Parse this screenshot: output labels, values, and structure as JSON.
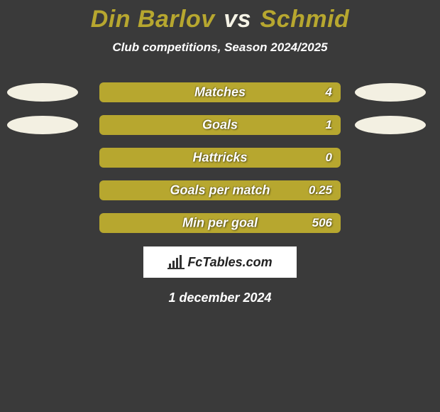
{
  "title": {
    "player1": "Din Barlov",
    "vs": "vs",
    "player2": "Schmid",
    "player1_color": "#b7a72f",
    "vs_color": "#f5f3e6",
    "player2_color": "#b7a72f",
    "fontsize": 34
  },
  "subtitle": {
    "text": "Club competitions, Season 2024/2025",
    "color": "#ffffff",
    "fontsize": 17
  },
  "ellipses": {
    "left_color": "#f3f0e2",
    "right_color": "#f3f0e2",
    "width": 100,
    "height": 26
  },
  "stats": {
    "bar_color": "#b7a72f",
    "label_fontsize": 18,
    "value_fontsize": 17,
    "rows": [
      {
        "label": "Matches",
        "value": "4",
        "show_ellipses": true
      },
      {
        "label": "Goals",
        "value": "1",
        "show_ellipses": true
      },
      {
        "label": "Hattricks",
        "value": "0",
        "show_ellipses": false
      },
      {
        "label": "Goals per match",
        "value": "0.25",
        "show_ellipses": false
      },
      {
        "label": "Min per goal",
        "value": "506",
        "show_ellipses": false
      }
    ]
  },
  "logo": {
    "text": "FcTables.com",
    "icon_color": "#333333"
  },
  "date": {
    "text": "1 december 2024",
    "color": "#ffffff",
    "fontsize": 18
  },
  "background_color": "#3a3a3a"
}
